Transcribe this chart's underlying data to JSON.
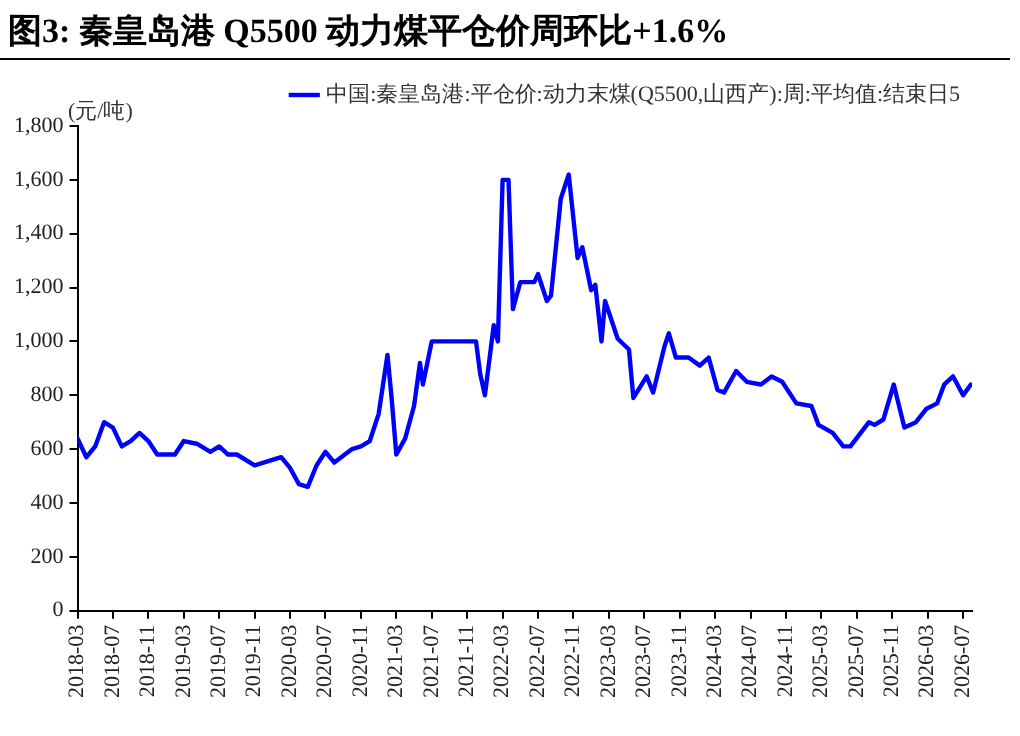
{
  "chart_data": {
    "type": "line",
    "title": "图3:  秦皇岛港 Q5500 动力煤平仓价周环比+1.6%",
    "ylabel": "(元/吨)",
    "legend": "top",
    "xlim": [
      "2018-03",
      "2026-08"
    ],
    "xticks": [
      "2018-03",
      "2018-07",
      "2018-11",
      "2019-03",
      "2019-07",
      "2019-11",
      "2020-03",
      "2020-07",
      "2020-11",
      "2021-03",
      "2021-07",
      "2021-11",
      "2022-03",
      "2022-07",
      "2022-11",
      "2023-03",
      "2023-07",
      "2023-11",
      "2024-03",
      "2024-07",
      "2024-11",
      "2025-03",
      "2025-07",
      "2025-11",
      "2026-03",
      "2026-07"
    ],
    "ylim": [
      0,
      1800
    ],
    "yticks": [
      0,
      200,
      400,
      600,
      800,
      {
        "value": 1000,
        "label": "1,000"
      },
      {
        "value": 1200,
        "label": "1,200"
      },
      {
        "value": 1400,
        "label": "1,400"
      },
      {
        "value": 1600,
        "label": "1,600"
      },
      {
        "value": 1800,
        "label": "1,800"
      }
    ],
    "marker": "none",
    "series": [
      {
        "name": "中国:秦皇岛港:平仓价:动力末煤(Q5500,山西产):周:平均值:结束日5",
        "color": "#0000ff",
        "x": [
          "2018-03-01",
          "2018-04-01",
          "2018-05-01",
          "2018-06-01",
          "2018-07-01",
          "2018-08-01",
          "2018-09-01",
          "2018-10-01",
          "2018-11-01",
          "2018-12-01",
          "2019-02-01",
          "2019-03-01",
          "2019-04-15",
          "2019-06-01",
          "2019-07-01",
          "2019-08-01",
          "2019-09-01",
          "2019-11-01",
          "2019-12-01",
          "2020-02-01",
          "2020-03-01",
          "2020-04-01",
          "2020-05-01",
          "2020-06-01",
          "2020-07-01",
          "2020-08-01",
          "2020-10-01",
          "2020-11-01",
          "2020-12-01",
          "2021-01-01",
          "2021-02-01",
          "2021-02-15",
          "2021-03-01",
          "2021-04-01",
          "2021-05-01",
          "2021-05-21",
          "2021-06-01",
          "2021-07-01",
          "2021-12-01",
          "2021-12-15",
          "2022-01-01",
          "2022-02-01",
          "2022-02-15",
          "2022-03-01",
          "2022-03-21",
          "2022-04-06",
          "2022-05-01",
          "2022-06-18",
          "2022-07-01",
          "2022-08-01",
          "2022-08-15",
          "2022-09-18",
          "2022-10-15",
          "2022-11-15",
          "2022-12-01",
          "2023-01-01",
          "2023-01-15",
          "2023-02-06",
          "2023-02-18",
          "2023-04-01",
          "2023-05-09",
          "2023-05-24",
          "2023-07-09",
          "2023-08-01",
          "2023-09-09",
          "2023-09-24",
          "2023-10-18",
          "2023-12-01",
          "2024-01-09",
          "2024-02-09",
          "2024-03-09",
          "2024-04-01",
          "2024-05-12",
          "2024-06-18",
          "2024-08-06",
          "2024-09-12",
          "2024-10-18",
          "2024-12-06",
          "2025-01-27",
          "2025-02-21",
          "2025-04-09",
          "2025-05-15",
          "2025-06-09",
          "2025-08-12",
          "2025-09-01",
          "2025-10-01",
          "2025-11-06",
          "2025-12-12",
          "2026-01-21",
          "2026-02-27",
          "2026-04-03",
          "2026-04-27",
          "2026-05-27",
          "2026-07-01",
          "2026-07-27"
        ],
        "values": [
          640,
          570,
          610,
          700,
          680,
          610,
          630,
          660,
          630,
          580,
          580,
          630,
          620,
          590,
          610,
          580,
          580,
          540,
          550,
          570,
          530,
          470,
          460,
          540,
          590,
          550,
          600,
          610,
          630,
          730,
          950,
          790,
          580,
          640,
          760,
          920,
          840,
          1000,
          1000,
          880,
          800,
          1060,
          1000,
          1600,
          1600,
          1120,
          1220,
          1220,
          1250,
          1150,
          1170,
          1530,
          1620,
          1310,
          1350,
          1190,
          1210,
          1000,
          1150,
          1010,
          970,
          790,
          870,
          810,
          980,
          1030,
          940,
          940,
          910,
          940,
          820,
          810,
          890,
          850,
          840,
          870,
          850,
          770,
          760,
          690,
          660,
          610,
          610,
          700,
          690,
          710,
          840,
          680,
          700,
          750,
          770,
          840,
          870,
          800,
          840
        ]
      }
    ]
  }
}
